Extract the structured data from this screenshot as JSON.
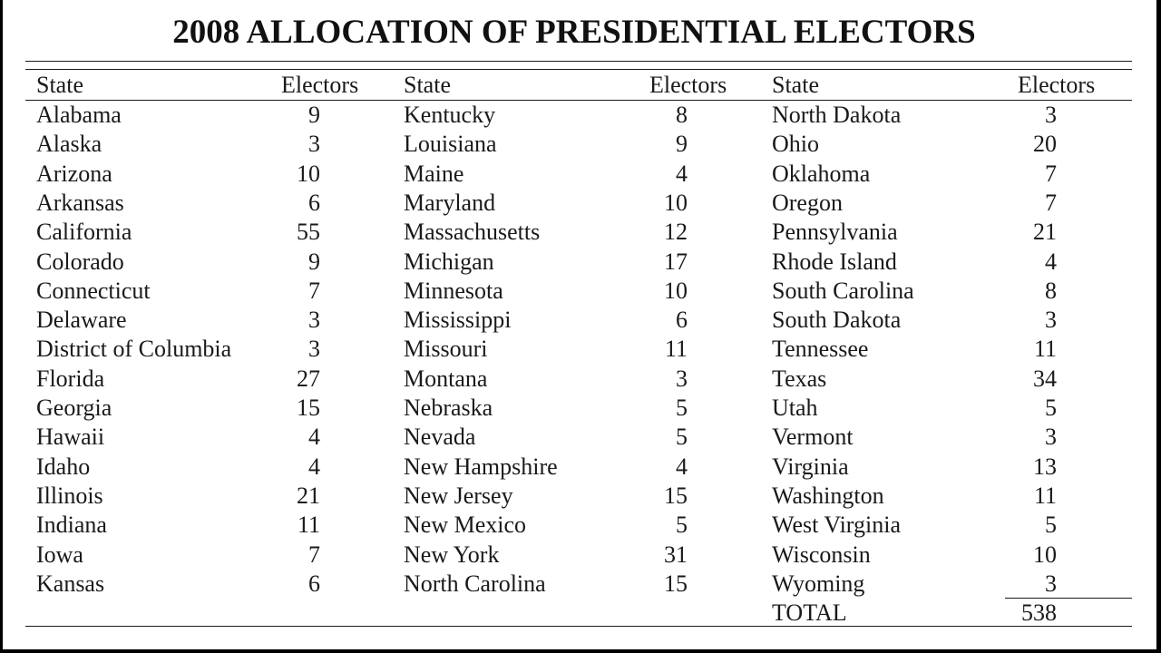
{
  "title": "2008 ALLOCATION OF PRESIDENTIAL ELECTORS",
  "headers": {
    "state": "State",
    "electors": "Electors"
  },
  "columns": [
    [
      {
        "state": "Alabama",
        "electors": "9"
      },
      {
        "state": "Alaska",
        "electors": "3"
      },
      {
        "state": "Arizona",
        "electors": "10"
      },
      {
        "state": "Arkansas",
        "electors": "6"
      },
      {
        "state": "California",
        "electors": "55"
      },
      {
        "state": "Colorado",
        "electors": "9"
      },
      {
        "state": "Connecticut",
        "electors": "7"
      },
      {
        "state": "Delaware",
        "electors": "3"
      },
      {
        "state": "District of Columbia",
        "electors": "3"
      },
      {
        "state": "Florida",
        "electors": "27"
      },
      {
        "state": "Georgia",
        "electors": "15"
      },
      {
        "state": "Hawaii",
        "electors": "4"
      },
      {
        "state": "Idaho",
        "electors": "4"
      },
      {
        "state": "Illinois",
        "electors": "21"
      },
      {
        "state": "Indiana",
        "electors": "11"
      },
      {
        "state": "Iowa",
        "electors": "7"
      },
      {
        "state": "Kansas",
        "electors": "6"
      }
    ],
    [
      {
        "state": "Kentucky",
        "electors": "8"
      },
      {
        "state": "Louisiana",
        "electors": "9"
      },
      {
        "state": "Maine",
        "electors": "4"
      },
      {
        "state": "Maryland",
        "electors": "10"
      },
      {
        "state": "Massachusetts",
        "electors": "12"
      },
      {
        "state": "Michigan",
        "electors": "17"
      },
      {
        "state": "Minnesota",
        "electors": "10"
      },
      {
        "state": "Mississippi",
        "electors": "6"
      },
      {
        "state": "Missouri",
        "electors": "11"
      },
      {
        "state": "Montana",
        "electors": "3"
      },
      {
        "state": "Nebraska",
        "electors": "5"
      },
      {
        "state": "Nevada",
        "electors": "5"
      },
      {
        "state": "New Hampshire",
        "electors": "4"
      },
      {
        "state": "New Jersey",
        "electors": "15"
      },
      {
        "state": "New Mexico",
        "electors": "5"
      },
      {
        "state": "New York",
        "electors": "31"
      },
      {
        "state": "North Carolina",
        "electors": "15"
      }
    ],
    [
      {
        "state": "North Dakota",
        "electors": "3"
      },
      {
        "state": "Ohio",
        "electors": "20"
      },
      {
        "state": "Oklahoma",
        "electors": "7"
      },
      {
        "state": "Oregon",
        "electors": "7"
      },
      {
        "state": "Pennsylvania",
        "electors": "21"
      },
      {
        "state": "Rhode Island",
        "electors": "4"
      },
      {
        "state": "South Carolina",
        "electors": "8"
      },
      {
        "state": "South Dakota",
        "electors": "3"
      },
      {
        "state": "Tennessee",
        "electors": "11"
      },
      {
        "state": "Texas",
        "electors": "34"
      },
      {
        "state": "Utah",
        "electors": "5"
      },
      {
        "state": "Vermont",
        "electors": "3"
      },
      {
        "state": "Virginia",
        "electors": "13"
      },
      {
        "state": "Washington",
        "electors": "11"
      },
      {
        "state": "West Virginia",
        "electors": "5"
      },
      {
        "state": "Wisconsin",
        "electors": "10"
      },
      {
        "state": "Wyoming",
        "electors": "3"
      }
    ]
  ],
  "total": {
    "label": "TOTAL",
    "value": "538"
  }
}
